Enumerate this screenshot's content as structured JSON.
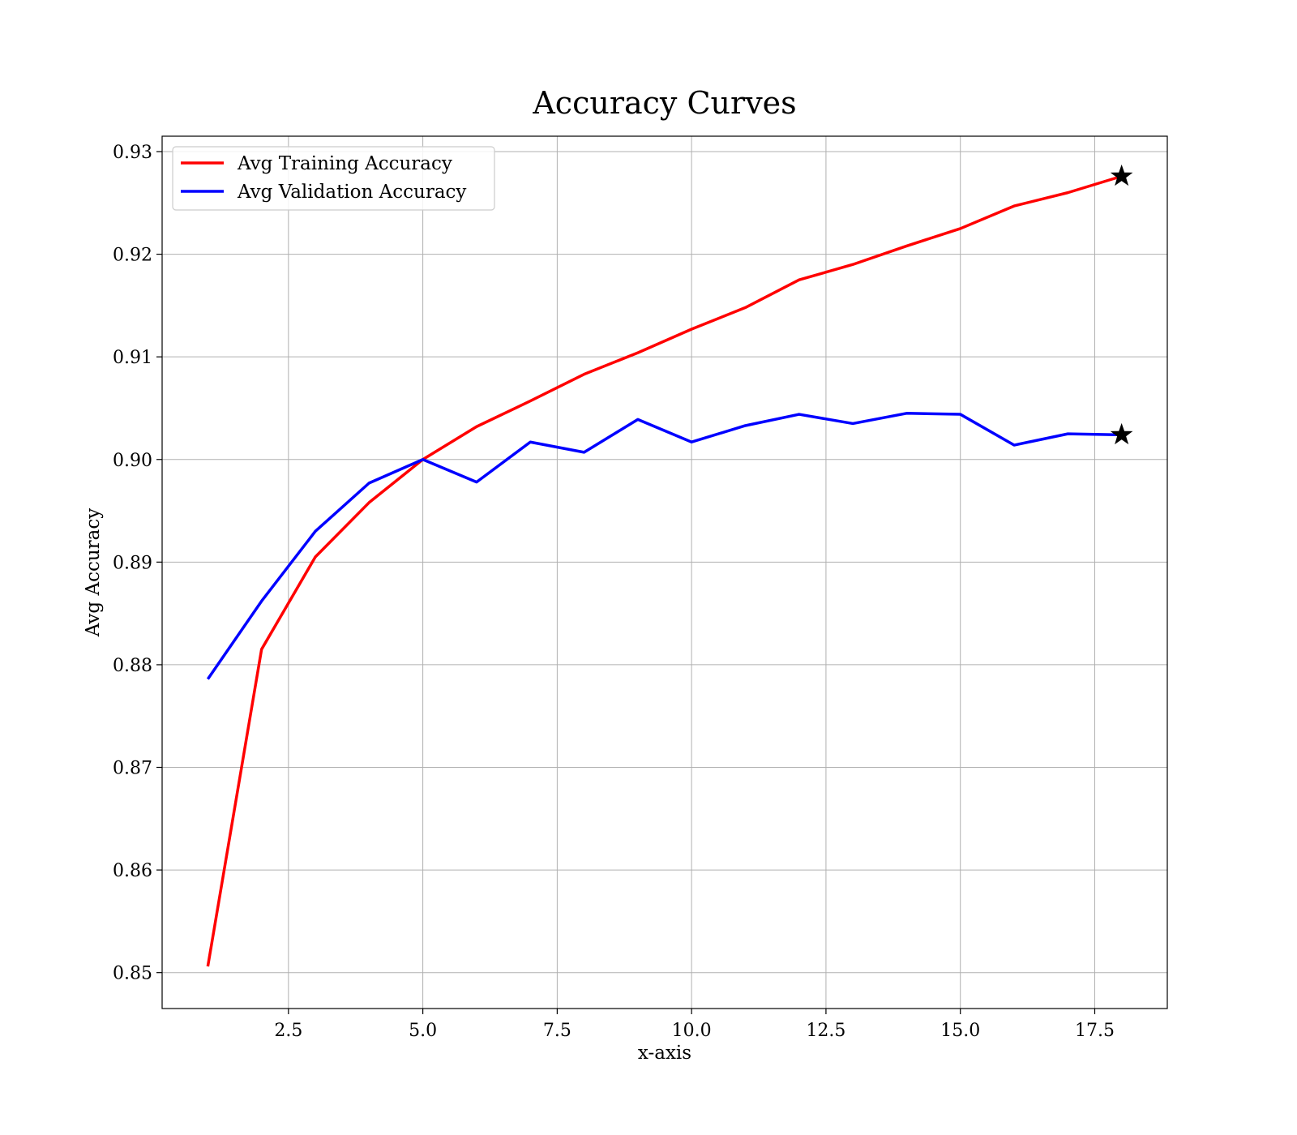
{
  "chart_data": {
    "type": "line",
    "title": "Accuracy Curves",
    "xlabel": "x-axis",
    "ylabel": "Avg Accuracy",
    "xlim": [
      0.15,
      18.85
    ],
    "ylim": [
      0.8465,
      0.9315
    ],
    "x_ticks": [
      2.5,
      5.0,
      7.5,
      10.0,
      12.5,
      15.0,
      17.5
    ],
    "x_tick_labels": [
      "2.5",
      "5.0",
      "7.5",
      "10.0",
      "12.5",
      "15.0",
      "17.5"
    ],
    "y_ticks": [
      0.85,
      0.86,
      0.87,
      0.88,
      0.89,
      0.9,
      0.91,
      0.92,
      0.93
    ],
    "y_tick_labels": [
      "0.85",
      "0.86",
      "0.87",
      "0.88",
      "0.89",
      "0.90",
      "0.91",
      "0.92",
      "0.93"
    ],
    "grid": true,
    "legend_position": "top-left",
    "x": [
      1,
      2,
      3,
      4,
      5,
      6,
      7,
      8,
      9,
      10,
      11,
      12,
      13,
      14,
      15,
      16,
      17,
      18
    ],
    "series": [
      {
        "name": "Avg Training Accuracy",
        "color": "#ff0000",
        "values": [
          0.8506,
          0.8815,
          0.8905,
          0.8958,
          0.9,
          0.9032,
          0.9057,
          0.9083,
          0.9104,
          0.9127,
          0.9148,
          0.9175,
          0.919,
          0.9208,
          0.9225,
          0.9247,
          0.926,
          0.9276
        ]
      },
      {
        "name": "Avg Validation Accuracy",
        "color": "#0000ff",
        "values": [
          0.8786,
          0.8862,
          0.893,
          0.8977,
          0.9,
          0.8978,
          0.9017,
          0.9007,
          0.9039,
          0.9017,
          0.9033,
          0.9044,
          0.9035,
          0.9045,
          0.9044,
          0.9014,
          0.9025,
          0.9024
        ]
      }
    ],
    "markers": [
      {
        "x": 18,
        "y": 0.9276,
        "shape": "star",
        "color": "#000000"
      },
      {
        "x": 18,
        "y": 0.9024,
        "shape": "star",
        "color": "#000000"
      }
    ]
  }
}
